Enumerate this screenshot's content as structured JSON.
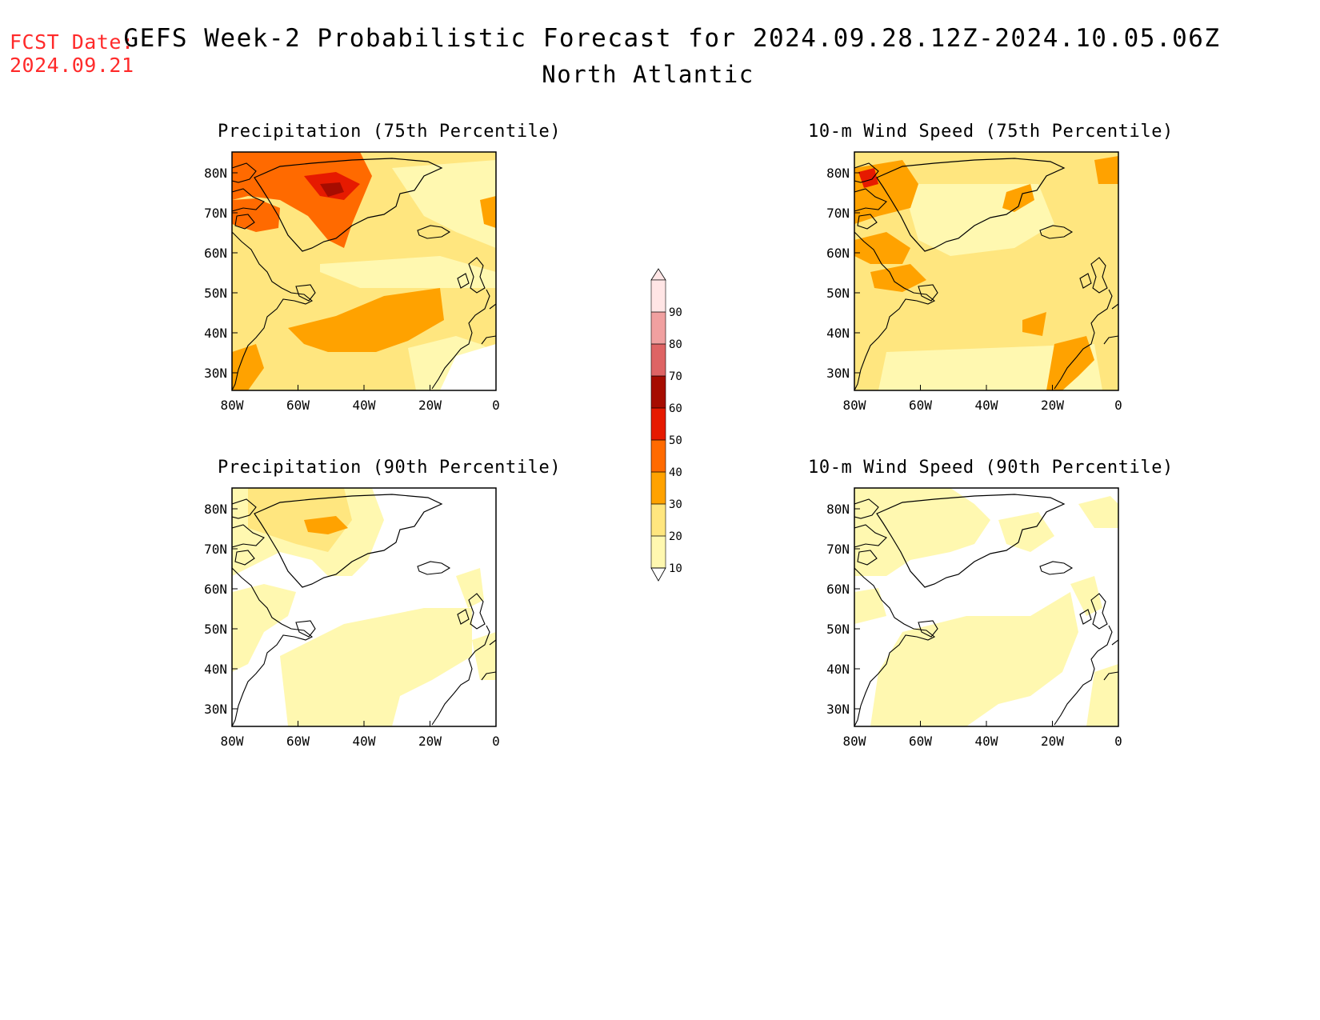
{
  "fcst": {
    "label": "FCST Date:",
    "date": "2024.09.21"
  },
  "title": "GEFS Week-2 Probabilistic Forecast for 2024.09.28.12Z-2024.10.05.06Z",
  "subtitle": "North Atlantic",
  "panels": [
    {
      "id": "precip-75",
      "title": "Precipitation (75th Percentile)"
    },
    {
      "id": "wind-75",
      "title": "10-m Wind Speed (75th Percentile)"
    },
    {
      "id": "precip-90",
      "title": "Precipitation (90th Percentile)"
    },
    {
      "id": "wind-90",
      "title": "10-m Wind Speed (90th Percentile)"
    }
  ],
  "axes": {
    "lat_labels": [
      "80N",
      "70N",
      "60N",
      "50N",
      "40N",
      "30N"
    ],
    "lon_labels": [
      "80W",
      "60W",
      "40W",
      "20W",
      "0"
    ]
  },
  "colorbar": {
    "levels": [
      "10",
      "20",
      "30",
      "40",
      "50",
      "60",
      "70",
      "80",
      "90"
    ],
    "colors": [
      "#fff8b0",
      "#ffe67f",
      "#ffa200",
      "#ff6a00",
      "#e61a00",
      "#a60c00",
      "#de6464",
      "#f0a0a0",
      "#ffe5e5"
    ]
  }
}
